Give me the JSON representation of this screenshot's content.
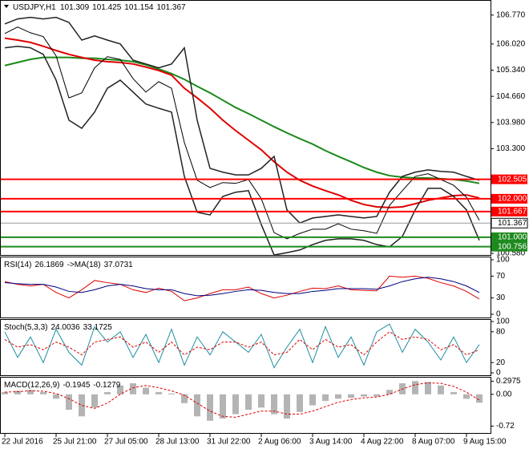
{
  "chart_data": [
    {
      "type": "line",
      "symbol": "USDJPY,H1",
      "ohlc": [
        101.309,
        101.425,
        101.154,
        101.367
      ],
      "categories": [
        "22 Jul 2016",
        null,
        null,
        null,
        "25 Jul 21:00",
        null,
        null,
        null,
        "27 Jul 05:00",
        null,
        null,
        null,
        "28 Jul 13:00",
        null,
        null,
        null,
        "31 Jul 22:00",
        null,
        null,
        null,
        "2 Aug 06:00",
        null,
        null,
        null,
        "3 Aug 14:00",
        null,
        null,
        null,
        "4 Aug 22:00",
        null,
        null,
        null,
        "8 Aug 07:00",
        null,
        null,
        null,
        "9 Aug 15:00",
        null
      ],
      "ylim": [
        100.54,
        107.12
      ],
      "yticks": [
        {
          "value": 106.77,
          "label": "106.770"
        },
        {
          "value": 106.02,
          "label": "106.020"
        },
        {
          "value": 105.34,
          "label": "105.340"
        },
        {
          "value": 104.66,
          "label": "104.660"
        },
        {
          "value": 103.98,
          "label": "103.980"
        },
        {
          "value": 103.3,
          "label": "103.300"
        },
        {
          "value": 100.58,
          "label": "100.580"
        }
      ],
      "series": [
        {
          "kind": "line",
          "color": "#1a8a1a",
          "width": 2,
          "values": [
            105.46,
            105.54,
            105.62,
            105.67,
            105.67,
            105.67,
            105.65,
            105.65,
            105.62,
            105.6,
            105.56,
            105.48,
            105.37,
            105.25,
            105.1,
            104.92,
            104.75,
            104.56,
            104.37,
            104.21,
            104.04,
            103.87,
            103.71,
            103.56,
            103.42,
            103.25,
            103.1,
            102.96,
            102.81,
            102.69,
            102.6,
            102.56,
            102.54,
            102.54,
            102.52,
            102.5,
            102.46,
            102.4
          ]
        },
        {
          "kind": "line",
          "color": "#e00000",
          "width": 2,
          "values": [
            106.17,
            106.12,
            106.06,
            105.96,
            105.85,
            105.75,
            105.67,
            105.6,
            105.56,
            105.54,
            105.5,
            105.42,
            105.33,
            105.21,
            104.87,
            104.62,
            104.35,
            104.04,
            103.77,
            103.52,
            103.27,
            102.96,
            102.69,
            102.48,
            102.33,
            102.21,
            102.1,
            101.96,
            101.85,
            101.79,
            101.77,
            101.79,
            101.87,
            101.96,
            102.02,
            102.08,
            102.1,
            102.02
          ]
        },
        {
          "kind": "line",
          "color": "#222222",
          "width": 1.5,
          "values": [
            106.54,
            106.67,
            106.71,
            106.67,
            106.71,
            106.58,
            106.12,
            106.23,
            106.12,
            106.02,
            105.6,
            105.5,
            105.4,
            105.5,
            105.92,
            104.04,
            102.79,
            102.69,
            102.62,
            102.62,
            102.79,
            103.1,
            101.71,
            101.37,
            101.5,
            101.54,
            101.58,
            101.54,
            101.5,
            101.54,
            102.17,
            102.58,
            102.69,
            102.75,
            102.71,
            102.69,
            102.58,
            102.48
          ]
        },
        {
          "kind": "line",
          "color": "#222222",
          "width": 1.5,
          "values": [
            105.92,
            105.96,
            105.92,
            105.75,
            105.08,
            104.04,
            103.83,
            104.25,
            104.87,
            105.08,
            104.77,
            104.46,
            104.35,
            104.25,
            102.58,
            101.65,
            101.58,
            102.06,
            102.17,
            102.21,
            101.33,
            100.54,
            100.6,
            100.67,
            100.81,
            100.92,
            100.96,
            100.96,
            100.92,
            100.81,
            100.75,
            101.02,
            101.71,
            102.27,
            102.27,
            102.06,
            101.71,
            100.92
          ]
        },
        {
          "kind": "line",
          "color": "#000000",
          "width": 1,
          "values": [
            106.29,
            106.46,
            106.31,
            106.21,
            105.71,
            104.62,
            104.75,
            105.4,
            105.69,
            105.62,
            105.12,
            104.77,
            105.04,
            104.87,
            103.46,
            102.48,
            102.29,
            102.42,
            102.4,
            102.5,
            102.0,
            101.12,
            100.96,
            101.1,
            101.21,
            101.21,
            101.35,
            101.21,
            101.17,
            101.1,
            101.83,
            102.21,
            102.58,
            102.65,
            102.5,
            102.35,
            102.04,
            101.44
          ]
        }
      ],
      "levels": [
        {
          "value": 102.505,
          "color": "#ff0000"
        },
        {
          "value": 102,
          "label": "102.000",
          "color": "#ff0000"
        },
        {
          "value": 101.667,
          "color": "#ff0000"
        },
        {
          "value": 101,
          "label": "101.000",
          "color": "#1e8a1e"
        },
        {
          "value": 100.756,
          "color": "#1e8a1e"
        }
      ],
      "last": 101.367
    },
    {
      "type": "line",
      "title": "RSI(14)",
      "readout": [
        26.1869
      ],
      "ma_label": "->MA(18)",
      "ma_readout": 37.0731,
      "ylim": [
        0,
        100
      ],
      "yticks": [
        100,
        70,
        30,
        0
      ],
      "series": [
        {
          "kind": "line",
          "color": "#e00000",
          "width": 1,
          "values": [
            60,
            55,
            52,
            55,
            40,
            30,
            45,
            62,
            58,
            55,
            45,
            40,
            48,
            42,
            25,
            30,
            38,
            45,
            45,
            50,
            38,
            30,
            35,
            42,
            48,
            47,
            52,
            45,
            44,
            43,
            70,
            68,
            70,
            66,
            58,
            52,
            42,
            28
          ]
        },
        {
          "kind": "line",
          "color": "#000080",
          "width": 1,
          "values": [
            58,
            56,
            55,
            55,
            50,
            42,
            40,
            45,
            52,
            55,
            52,
            47,
            45,
            45,
            38,
            34,
            35,
            38,
            42,
            45,
            44,
            40,
            38,
            38,
            42,
            44,
            47,
            47,
            47,
            46,
            52,
            60,
            65,
            68,
            65,
            60,
            52,
            40
          ]
        }
      ]
    },
    {
      "type": "line",
      "title": "Stoch(5,3,3)",
      "readout": [
        24.0036,
        33.1725
      ],
      "ylim": [
        0,
        100
      ],
      "yticks": [
        100,
        80,
        20,
        0
      ],
      "series": [
        {
          "kind": "line",
          "color": "#1f8fa0",
          "width": 1,
          "values": [
            80,
            30,
            70,
            20,
            85,
            40,
            15,
            90,
            60,
            80,
            30,
            75,
            20,
            85,
            15,
            70,
            35,
            80,
            60,
            40,
            75,
            10,
            50,
            85,
            20,
            90,
            30,
            70,
            15,
            80,
            95,
            40,
            85,
            60,
            25,
            70,
            20,
            55
          ]
        },
        {
          "kind": "line",
          "color": "#e00000",
          "width": 1,
          "dash": true,
          "values": [
            65,
            50,
            55,
            45,
            60,
            50,
            35,
            60,
            65,
            70,
            50,
            60,
            40,
            60,
            35,
            50,
            45,
            60,
            60,
            50,
            60,
            35,
            40,
            65,
            45,
            65,
            50,
            55,
            35,
            60,
            80,
            65,
            70,
            65,
            45,
            55,
            35,
            45
          ]
        }
      ]
    },
    {
      "type": "bar",
      "title": "MACD(12,26,9)",
      "readout": [
        -0.1945,
        -0.1279
      ],
      "ylim": [
        -0.84,
        0.36
      ],
      "yticks": [
        0.2975,
        {
          "value": 0,
          "label": "0.00"
        },
        -0.72
      ],
      "series": [
        {
          "kind": "bar",
          "color": "#b4b4b4",
          "values": [
            0.05,
            0.08,
            0.1,
            0.05,
            -0.1,
            -0.35,
            -0.5,
            -0.3,
            0.05,
            0.2,
            0.25,
            0.15,
            0.05,
            0.02,
            -0.2,
            -0.5,
            -0.6,
            -0.55,
            -0.45,
            -0.35,
            -0.3,
            -0.45,
            -0.55,
            -0.4,
            -0.25,
            -0.15,
            -0.1,
            -0.08,
            -0.05,
            -0.05,
            0.1,
            0.25,
            0.3,
            0.28,
            0.2,
            0.05,
            -0.1,
            -0.19
          ]
        },
        {
          "kind": "line",
          "color": "#e00000",
          "width": 1,
          "dash": true,
          "values": [
            0.05,
            0.06,
            0.08,
            0.07,
            0.02,
            -0.1,
            -0.25,
            -0.32,
            -0.2,
            0.0,
            0.15,
            0.2,
            0.15,
            0.08,
            -0.02,
            -0.2,
            -0.38,
            -0.5,
            -0.52,
            -0.45,
            -0.38,
            -0.38,
            -0.45,
            -0.45,
            -0.38,
            -0.28,
            -0.18,
            -0.12,
            -0.08,
            -0.06,
            0.0,
            0.12,
            0.22,
            0.26,
            0.25,
            0.18,
            0.05,
            -0.13
          ]
        }
      ]
    }
  ]
}
